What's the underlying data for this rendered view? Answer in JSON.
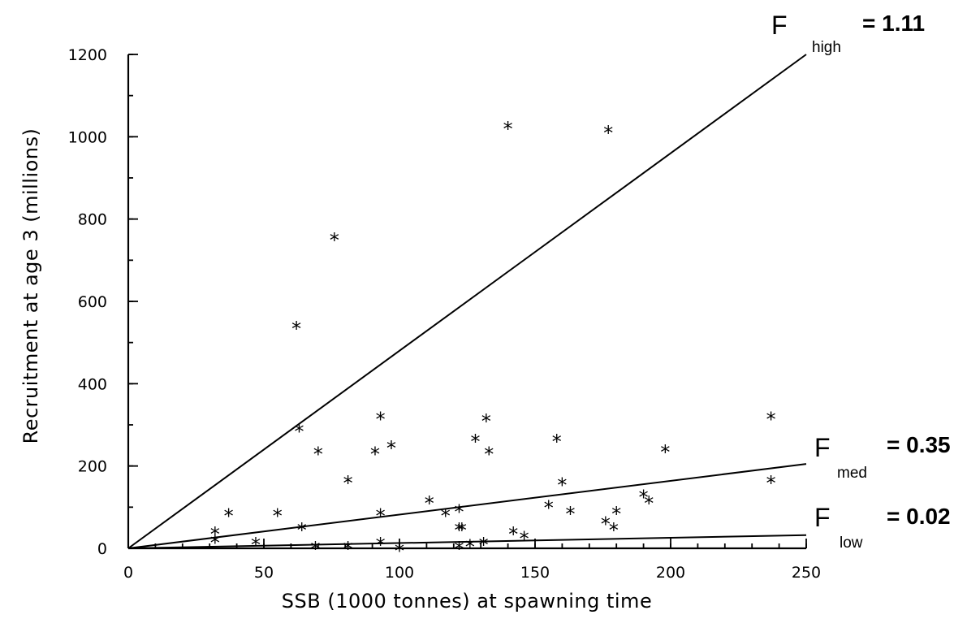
{
  "chart_data": {
    "type": "scatter",
    "title": "",
    "xlabel": "SSB (1000 tonnes) at spawning time",
    "ylabel": "Recruitment at age 3 (millions)",
    "xlim": [
      0,
      250
    ],
    "ylim": [
      0,
      1200
    ],
    "xticks": [
      "0",
      "50",
      "100",
      "150",
      "200",
      "250"
    ],
    "yticks": [
      "0",
      "200",
      "400",
      "600",
      "800",
      "1000",
      "1200"
    ],
    "grid": false,
    "marker": "*",
    "points": [
      {
        "x": 32,
        "y": 45
      },
      {
        "x": 32,
        "y": 25
      },
      {
        "x": 37,
        "y": 90
      },
      {
        "x": 47,
        "y": 20
      },
      {
        "x": 55,
        "y": 90
      },
      {
        "x": 62,
        "y": 545
      },
      {
        "x": 63,
        "y": 295
      },
      {
        "x": 64,
        "y": 55
      },
      {
        "x": 69,
        "y": 10
      },
      {
        "x": 70,
        "y": 240
      },
      {
        "x": 76,
        "y": 760
      },
      {
        "x": 81,
        "y": 170
      },
      {
        "x": 81,
        "y": 10
      },
      {
        "x": 91,
        "y": 240
      },
      {
        "x": 93,
        "y": 325
      },
      {
        "x": 93,
        "y": 90
      },
      {
        "x": 93,
        "y": 20
      },
      {
        "x": 97,
        "y": 255
      },
      {
        "x": 100,
        "y": 5
      },
      {
        "x": 111,
        "y": 120
      },
      {
        "x": 117,
        "y": 90
      },
      {
        "x": 122,
        "y": 100
      },
      {
        "x": 122,
        "y": 55
      },
      {
        "x": 123,
        "y": 55
      },
      {
        "x": 122,
        "y": 10
      },
      {
        "x": 126,
        "y": 15
      },
      {
        "x": 128,
        "y": 270
      },
      {
        "x": 131,
        "y": 20
      },
      {
        "x": 132,
        "y": 320
      },
      {
        "x": 133,
        "y": 240
      },
      {
        "x": 140,
        "y": 1030
      },
      {
        "x": 142,
        "y": 45
      },
      {
        "x": 146,
        "y": 35
      },
      {
        "x": 155,
        "y": 110
      },
      {
        "x": 158,
        "y": 270
      },
      {
        "x": 160,
        "y": 165
      },
      {
        "x": 163,
        "y": 95
      },
      {
        "x": 176,
        "y": 70
      },
      {
        "x": 177,
        "y": 1020
      },
      {
        "x": 179,
        "y": 55
      },
      {
        "x": 180,
        "y": 95
      },
      {
        "x": 190,
        "y": 135
      },
      {
        "x": 192,
        "y": 120
      },
      {
        "x": 198,
        "y": 245
      },
      {
        "x": 237,
        "y": 325
      },
      {
        "x": 237,
        "y": 170
      }
    ],
    "lines": [
      {
        "label": "F",
        "subscript": "high",
        "value": "= 1.11",
        "x": [
          0,
          250
        ],
        "y": [
          0,
          1200
        ]
      },
      {
        "label": "F",
        "subscript": "med",
        "value": "= 0.35",
        "x": [
          0,
          250
        ],
        "y": [
          0,
          205
        ]
      },
      {
        "label": "F",
        "subscript": "low",
        "value": "= 0.02",
        "x": [
          0,
          250
        ],
        "y": [
          0,
          32
        ]
      }
    ]
  }
}
